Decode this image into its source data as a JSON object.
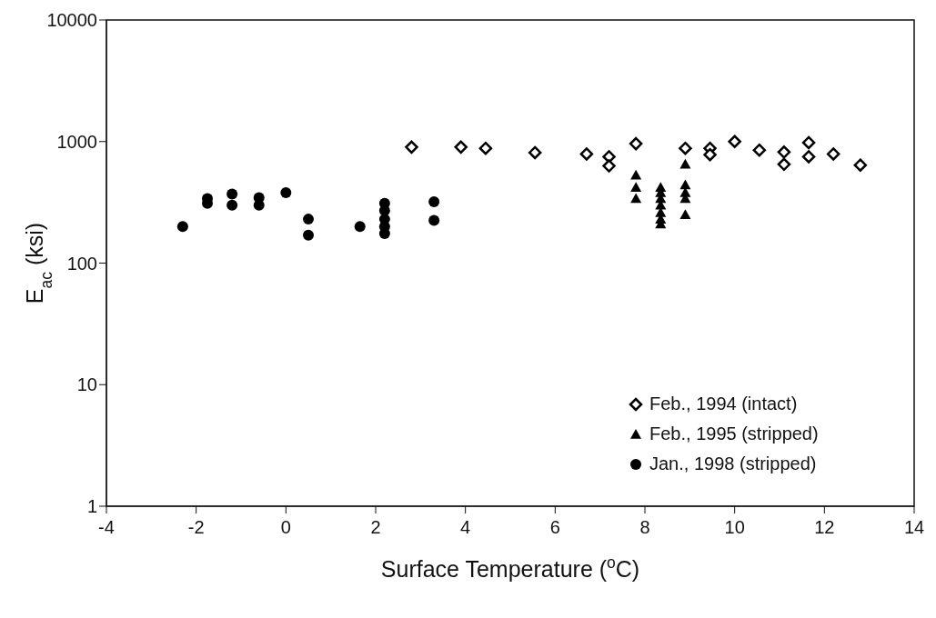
{
  "chart_data": {
    "type": "scatter",
    "xlabel": "Surface Temperature ($^{o}$C)",
    "ylabel": "E$_{ac}$ (ksi)",
    "xlim": [
      -4,
      14
    ],
    "xticks": [
      -4,
      -2,
      0,
      2,
      4,
      6,
      8,
      10,
      12,
      14
    ],
    "ylim": [
      1,
      10000
    ],
    "yticks": [
      1,
      10,
      100,
      1000,
      10000
    ],
    "log": "y",
    "grid": false,
    "legend": "bottom right",
    "series": [
      {
        "name": "Feb., 1994 (intact)",
        "color": "#000000",
        "marker": "diamond",
        "x": [
          2.8,
          3.9,
          4.45,
          5.55,
          6.7,
          7.2,
          7.2,
          7.8,
          8.9,
          9.45,
          9.45,
          10.0,
          10.55,
          11.1,
          11.1,
          11.65,
          11.65,
          12.2,
          12.8
        ],
        "values": [
          900,
          900,
          880,
          810,
          790,
          750,
          630,
          960,
          880,
          880,
          780,
          1000,
          850,
          820,
          650,
          980,
          750,
          790,
          640
        ]
      },
      {
        "name": "Feb., 1995 (stripped)",
        "color": "#000000",
        "marker": "triangle",
        "x": [
          7.8,
          7.8,
          7.8,
          8.35,
          8.35,
          8.35,
          8.35,
          8.35,
          8.35,
          8.35,
          8.9,
          8.9,
          8.9,
          8.9,
          8.9
        ],
        "values": [
          530,
          420,
          340,
          420,
          380,
          340,
          300,
          260,
          230,
          210,
          650,
          440,
          380,
          340,
          250
        ]
      },
      {
        "name": "Jan., 1998 (stripped)",
        "color": "#000000",
        "marker": "circle",
        "x": [
          -2.3,
          -1.75,
          -1.75,
          -1.2,
          -1.2,
          -0.6,
          -0.6,
          0,
          0.5,
          0.5,
          1.65,
          2.2,
          2.2,
          2.2,
          2.2,
          2.2,
          3.3,
          3.3
        ],
        "values": [
          200,
          340,
          310,
          370,
          300,
          345,
          300,
          380,
          230,
          170,
          200,
          310,
          270,
          230,
          200,
          175,
          320,
          225
        ]
      }
    ]
  }
}
